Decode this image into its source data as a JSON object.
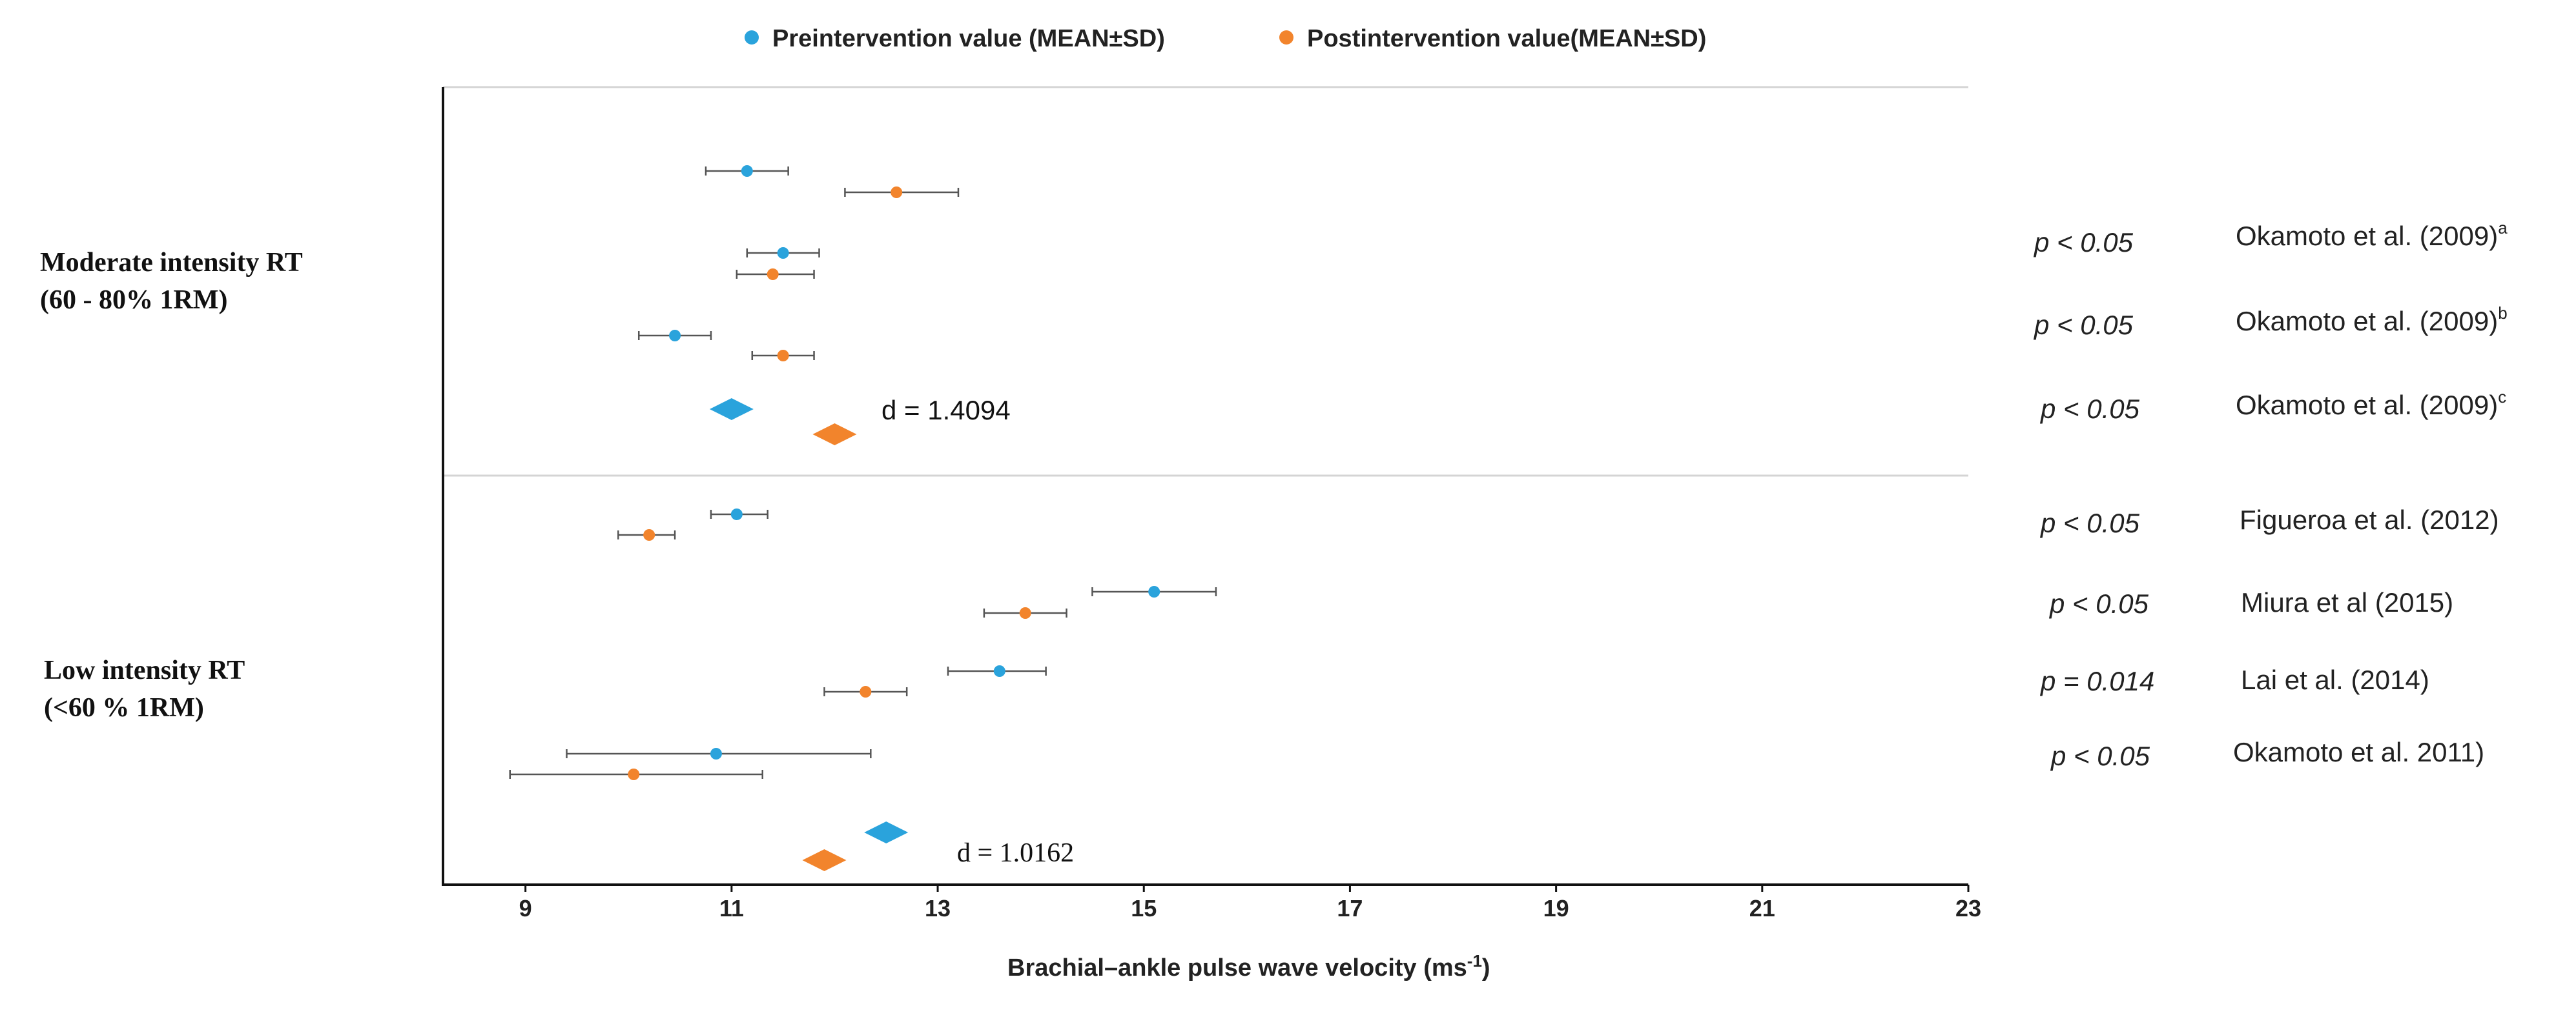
{
  "chart_data": {
    "type": "forest",
    "xlabel": "Brachial–ankle pulse wave velocity (ms",
    "xlabel_sup": "-1",
    "xlabel_close": ")",
    "xlim": [
      8.2,
      23
    ],
    "xticks": [
      9,
      11,
      13,
      15,
      17,
      19,
      21,
      23
    ],
    "legend": [
      {
        "key": "pre",
        "label": "Preintervention value (MEAN±SD)",
        "color": "#2aa3dc"
      },
      {
        "key": "post",
        "label": "Postintervention value(MEAN±SD)",
        "color": "#f2842c"
      }
    ],
    "colors": {
      "pre": "#2aa3dc",
      "post": "#f2842c",
      "axis": "#111111",
      "divider": "#d0d0d0",
      "errorbar": "#555555"
    },
    "groups": [
      {
        "label_line1": "Moderate intensity RT",
        "label_line2": "(60 - 80% 1RM)",
        "effect_size": "d = 1.4094",
        "summary": {
          "pre": 11.0,
          "post": 12.0
        },
        "points": [
          {
            "series": "pre",
            "mean": 11.15,
            "lo": 10.75,
            "hi": 11.55
          },
          {
            "series": "post",
            "mean": 12.6,
            "lo": 12.1,
            "hi": 13.2
          },
          {
            "series": "pre",
            "mean": 11.5,
            "lo": 11.15,
            "hi": 11.85
          },
          {
            "series": "post",
            "mean": 11.4,
            "lo": 11.05,
            "hi": 11.8
          },
          {
            "series": "pre",
            "mean": 10.45,
            "lo": 10.1,
            "hi": 10.8
          },
          {
            "series": "post",
            "mean": 11.5,
            "lo": 11.2,
            "hi": 11.8
          }
        ],
        "annotations": [
          {
            "p": "p < 0.05",
            "study": "Okamoto et al. (2009)",
            "sup": "a"
          },
          {
            "p": "p < 0.05",
            "study": "Okamoto et al. (2009)",
            "sup": "b"
          },
          {
            "p": "p < 0.05",
            "study": "Okamoto et al. (2009)",
            "sup": "c"
          }
        ]
      },
      {
        "label_line1": "Low intensity RT",
        "label_line2": "(<60 % 1RM)",
        "effect_size": "d = 1.0162",
        "summary": {
          "pre": 12.5,
          "post": 11.9
        },
        "points": [
          {
            "series": "pre",
            "mean": 11.05,
            "lo": 10.8,
            "hi": 11.35
          },
          {
            "series": "post",
            "mean": 10.2,
            "lo": 9.9,
            "hi": 10.45
          },
          {
            "series": "pre",
            "mean": 15.1,
            "lo": 14.5,
            "hi": 15.7
          },
          {
            "series": "post",
            "mean": 13.85,
            "lo": 13.45,
            "hi": 14.25
          },
          {
            "series": "pre",
            "mean": 13.6,
            "lo": 13.1,
            "hi": 14.05
          },
          {
            "series": "post",
            "mean": 12.3,
            "lo": 11.9,
            "hi": 12.7
          },
          {
            "series": "pre",
            "mean": 10.85,
            "lo": 9.4,
            "hi": 12.35
          },
          {
            "series": "post",
            "mean": 10.05,
            "lo": 8.85,
            "hi": 11.3
          }
        ],
        "annotations": [
          {
            "p": "p < 0.05",
            "study": "Figueroa et al. (2012)",
            "sup": ""
          },
          {
            "p": "p < 0.05",
            "study": "Miura et al (2015)",
            "sup": ""
          },
          {
            "p": "p = 0.014",
            "study": "Lai et al. (2014)",
            "sup": ""
          },
          {
            "p": "p < 0.05",
            "study": "Okamoto et al. 2011)",
            "sup": ""
          }
        ]
      }
    ]
  }
}
